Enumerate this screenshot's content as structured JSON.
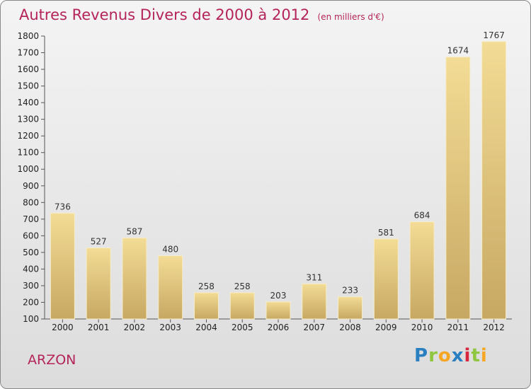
{
  "header": {
    "title": "Autres Revenus Divers de 2000 à 2012",
    "unit": "(en milliers d'€)"
  },
  "location": "ARZON",
  "logo": {
    "letters": [
      "P",
      "r",
      "o",
      "x",
      "i",
      "t",
      "i"
    ],
    "colors": [
      "#2a7fc1",
      "#8fc640",
      "#f5a623",
      "#2a7fc1",
      "#d7263d",
      "#8fc640",
      "#f5a623"
    ]
  },
  "colors": {
    "bar_light": "#f3dc95",
    "bar_dark": "#c7a863",
    "accent": "#b4245a"
  },
  "chart_data": {
    "type": "bar",
    "categories": [
      "2000",
      "2001",
      "2002",
      "2003",
      "2004",
      "2005",
      "2006",
      "2007",
      "2008",
      "2009",
      "2010",
      "2011",
      "2012"
    ],
    "values": [
      736,
      527,
      587,
      480,
      258,
      258,
      203,
      311,
      233,
      581,
      684,
      1674,
      1767
    ],
    "title": "Autres Revenus Divers de 2000 à 2012",
    "subtitle": "(en milliers d'€)",
    "xlabel": "",
    "ylabel": "",
    "ylim": [
      100,
      1800
    ],
    "yticks": [
      100,
      200,
      300,
      400,
      500,
      600,
      700,
      800,
      900,
      1000,
      1100,
      1200,
      1300,
      1400,
      1500,
      1600,
      1700,
      1800
    ],
    "grid": false,
    "legend": "none"
  }
}
